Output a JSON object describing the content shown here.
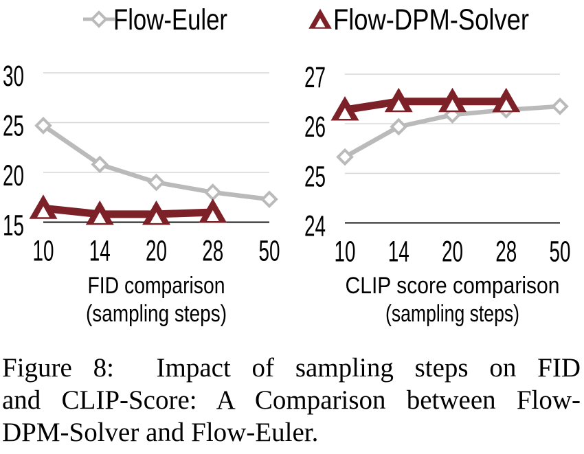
{
  "colors": {
    "euler_gray": "#bababa",
    "dpm_maroon": "#7c2127",
    "gridline": "#d6d6d6",
    "axis_line": "#1a1a1a",
    "marker_fill": "#ffffff",
    "text": "#000000"
  },
  "legend": {
    "position": "top",
    "items": [
      {
        "label": "Flow-Euler",
        "marker": "diamond-icon",
        "color": "#bababa"
      },
      {
        "label": "Flow-DPM-Solver",
        "marker": "triangle-icon",
        "color": "#7c2127"
      }
    ]
  },
  "chart_data": [
    {
      "type": "line",
      "title": "FID comparison",
      "xlabel": "FID comparison",
      "xlabel_sub": "(sampling steps)",
      "ylabel": "",
      "categories": [
        "10",
        "14",
        "20",
        "28",
        "50"
      ],
      "x_values": [
        10,
        14,
        20,
        28,
        50
      ],
      "series": [
        {
          "name": "Flow-Euler",
          "values": [
            24.7,
            20.8,
            19.0,
            18.0,
            17.3
          ]
        },
        {
          "name": "Flow-DPM-Solver",
          "values": [
            16.4,
            15.8,
            15.8,
            16.0
          ]
        }
      ],
      "yticks": [
        15,
        20,
        25,
        30
      ],
      "ylim": [
        15,
        30
      ],
      "grid": true,
      "legend_position": "top"
    },
    {
      "type": "line",
      "title": "CLIP score comparison",
      "xlabel": "CLIP score comparison",
      "xlabel_sub": "(sampling steps)",
      "ylabel": "",
      "categories": [
        "10",
        "14",
        "20",
        "28",
        "50"
      ],
      "x_values": [
        10,
        14,
        20,
        28,
        50
      ],
      "series": [
        {
          "name": "Flow-Euler",
          "values": [
            25.33,
            25.94,
            26.18,
            26.28,
            26.35
          ]
        },
        {
          "name": "Flow-DPM-Solver",
          "values": [
            26.28,
            26.45,
            26.45,
            26.45
          ]
        }
      ],
      "yticks": [
        24,
        25,
        26,
        27
      ],
      "ylim": [
        24,
        27
      ],
      "grid": true,
      "legend_position": "top"
    }
  ],
  "caption": {
    "label": "Figure 8:",
    "lines": [
      "Figure 8:  Impact of sampling steps on FID",
      "and CLIP-Score: A Comparison between Flow-",
      "DPM-Solver and Flow-Euler."
    ],
    "text": "Figure 8: Impact of sampling steps on FID and CLIP-Score: A Comparison between Flow-DPM-Solver and Flow-Euler."
  }
}
